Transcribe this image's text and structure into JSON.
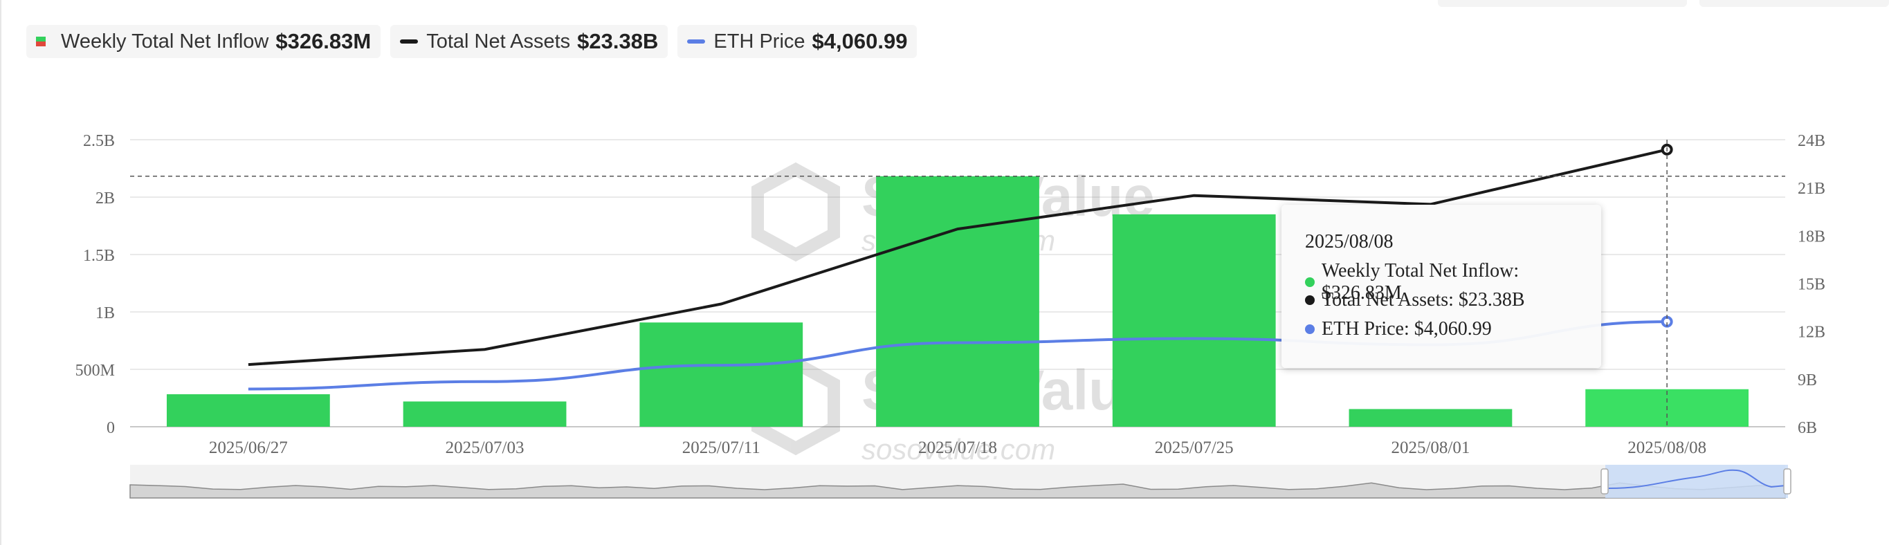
{
  "legend": [
    {
      "name": "Weekly Total Net Inflow",
      "value": "$326.83M",
      "color": "#33d15c",
      "shape": "square"
    },
    {
      "name": "Total Net Assets",
      "value": "$23.38B",
      "color": "#1a1a1a",
      "shape": "line"
    },
    {
      "name": "ETH Price",
      "value": "$4,060.99",
      "color": "#5b7ee5",
      "shape": "line"
    }
  ],
  "watermark": {
    "brand": "SoSoValue",
    "url": "sosovalue.com"
  },
  "tooltip": {
    "date": "2025/08/08",
    "rows": [
      {
        "label": "Weekly Total Net Inflow: $326.83M",
        "color": "#33d15c"
      },
      {
        "label": "Total Net Assets: $23.38B",
        "color": "#1a1a1a"
      },
      {
        "label": "ETH Price: $4,060.99",
        "color": "#5b7ee5"
      }
    ]
  },
  "chart_data": {
    "type": "bar",
    "categories": [
      "2025/06/27",
      "2025/07/03",
      "2025/07/11",
      "2025/07/18",
      "2025/07/25",
      "2025/08/01",
      "2025/08/08"
    ],
    "series": [
      {
        "name": "Weekly Total Net Inflow",
        "type": "bar",
        "axis": "left",
        "color": "#33d15c",
        "values": [
          283000000,
          220000000,
          908000000,
          2182000000,
          1850000000,
          154000000,
          326830000
        ]
      },
      {
        "name": "Total Net Assets",
        "type": "line",
        "axis": "right",
        "color": "#1a1a1a",
        "values": [
          9900000000,
          10850000000,
          13700000000,
          18400000000,
          20500000000,
          19950000000,
          23380000000
        ]
      },
      {
        "name": "ETH Price",
        "type": "line",
        "axis": "right-price",
        "color": "#5b7ee5",
        "values": [
          2420,
          2600,
          3000,
          3550,
          3650,
          3500,
          4060.99
        ]
      }
    ],
    "left_axis": {
      "ticks": [
        "0",
        "500M",
        "1B",
        "1.5B",
        "2B",
        "2.5B"
      ],
      "range": [
        0,
        2500000000
      ]
    },
    "right_axis": {
      "ticks": [
        "6B",
        "9B",
        "12B",
        "15B",
        "18B",
        "21B",
        "24B"
      ],
      "range": [
        6000000000,
        24000000000
      ]
    },
    "grid": true,
    "legend_position": "top-left"
  }
}
